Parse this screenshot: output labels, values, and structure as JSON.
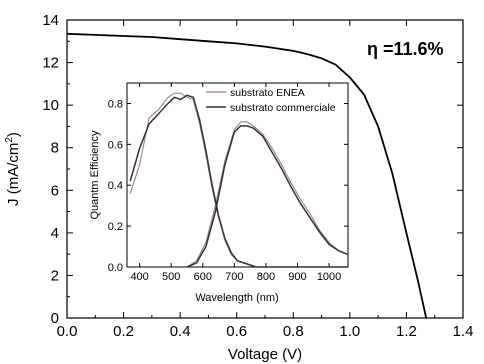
{
  "chart_data": [
    {
      "type": "line",
      "xlabel": "Voltage (V)",
      "ylabel_main": "J (mA/cm",
      "ylabel_sup": "2",
      "ylabel_close": ")",
      "xlim": [
        0.0,
        1.4
      ],
      "ylim": [
        0,
        14
      ],
      "xticks": [
        0.0,
        0.2,
        0.4,
        0.6,
        0.8,
        1.0,
        1.2,
        1.4
      ],
      "xtick_labels": [
        "0.0",
        "0.2",
        "0.4",
        "0.6",
        "0.8",
        "1.0",
        "1.2",
        "1.4"
      ],
      "yticks": [
        0,
        2,
        4,
        6,
        8,
        10,
        12,
        14
      ],
      "ytick_labels": [
        "0",
        "2",
        "4",
        "6",
        "8",
        "10",
        "12",
        "14"
      ],
      "annotation": "η =11.6%",
      "series": [
        {
          "color": "#000000",
          "x": [
            0.0,
            0.1,
            0.2,
            0.3,
            0.4,
            0.5,
            0.6,
            0.7,
            0.8,
            0.85,
            0.9,
            0.95,
            1.0,
            1.05,
            1.1,
            1.15,
            1.2,
            1.24,
            1.27
          ],
          "y": [
            13.35,
            13.3,
            13.25,
            13.2,
            13.1,
            13.0,
            12.9,
            12.75,
            12.55,
            12.4,
            12.2,
            11.9,
            11.3,
            10.5,
            9.0,
            6.8,
            4.0,
            1.8,
            0.0
          ]
        }
      ]
    },
    {
      "type": "line",
      "xlabel": "Wavelength (nm)",
      "ylabel": "Quantm Efficiency",
      "xlim": [
        360,
        1060
      ],
      "ylim": [
        0.0,
        0.9
      ],
      "xticks": [
        400,
        500,
        600,
        700,
        800,
        900,
        1000
      ],
      "xtick_labels": [
        "400",
        "500",
        "600",
        "700",
        "800",
        "900",
        "1000"
      ],
      "yticks": [
        0.0,
        0.2,
        0.4,
        0.6,
        0.8
      ],
      "ytick_labels": [
        "0.0",
        "0.2",
        "0.4",
        "0.6",
        "0.8"
      ],
      "legend_position": "top-right",
      "series": [
        {
          "name": "substrato ENEA",
          "color": "#a07a9a",
          "x": [
            370,
            400,
            430,
            460,
            490,
            510,
            530,
            550,
            570,
            590,
            610,
            630,
            650,
            670,
            690,
            710,
            730,
            750,
            770,
            790,
            810,
            830,
            850,
            870,
            900,
            930,
            960,
            1000,
            1040,
            1060
          ],
          "x2": [
            550,
            580,
            610,
            640,
            670,
            700,
            720,
            740,
            760,
            790,
            820,
            850,
            880,
            910,
            940,
            970,
            1000,
            1030,
            1060
          ],
          "y": [
            0.36,
            0.5,
            0.73,
            0.77,
            0.83,
            0.85,
            0.85,
            0.83,
            0.82,
            0.7,
            0.55,
            0.38,
            0.24,
            0.13,
            0.06,
            0.03,
            0.02,
            0.01,
            0.0,
            0.0,
            0.0,
            0.0,
            0.0,
            0.0,
            0.0,
            0.0,
            0.0,
            0.0,
            0.0,
            0.0
          ],
          "y2": [
            0.0,
            0.03,
            0.12,
            0.3,
            0.52,
            0.67,
            0.71,
            0.71,
            0.69,
            0.65,
            0.58,
            0.5,
            0.41,
            0.33,
            0.26,
            0.18,
            0.12,
            0.08,
            0.06
          ]
        },
        {
          "name": "substrato commerciale",
          "color": "#333333",
          "x": [
            370,
            400,
            430,
            460,
            490,
            510,
            530,
            550,
            570,
            590,
            610,
            630,
            650,
            670,
            690,
            710,
            730,
            750,
            770,
            790,
            810,
            830,
            850,
            870,
            900,
            930,
            960,
            1000,
            1040,
            1060
          ],
          "x2": [
            550,
            580,
            610,
            640,
            670,
            700,
            720,
            740,
            760,
            790,
            820,
            850,
            880,
            910,
            940,
            970,
            1000,
            1030,
            1060
          ],
          "y": [
            0.42,
            0.58,
            0.7,
            0.75,
            0.8,
            0.83,
            0.82,
            0.84,
            0.83,
            0.72,
            0.57,
            0.4,
            0.25,
            0.14,
            0.07,
            0.03,
            0.02,
            0.01,
            0.0,
            0.0,
            0.0,
            0.0,
            0.0,
            0.0,
            0.0,
            0.0,
            0.0,
            0.0,
            0.0,
            0.0
          ],
          "y2": [
            0.0,
            0.02,
            0.1,
            0.27,
            0.5,
            0.66,
            0.69,
            0.69,
            0.68,
            0.64,
            0.56,
            0.48,
            0.39,
            0.31,
            0.24,
            0.17,
            0.11,
            0.08,
            0.06
          ]
        }
      ]
    }
  ]
}
